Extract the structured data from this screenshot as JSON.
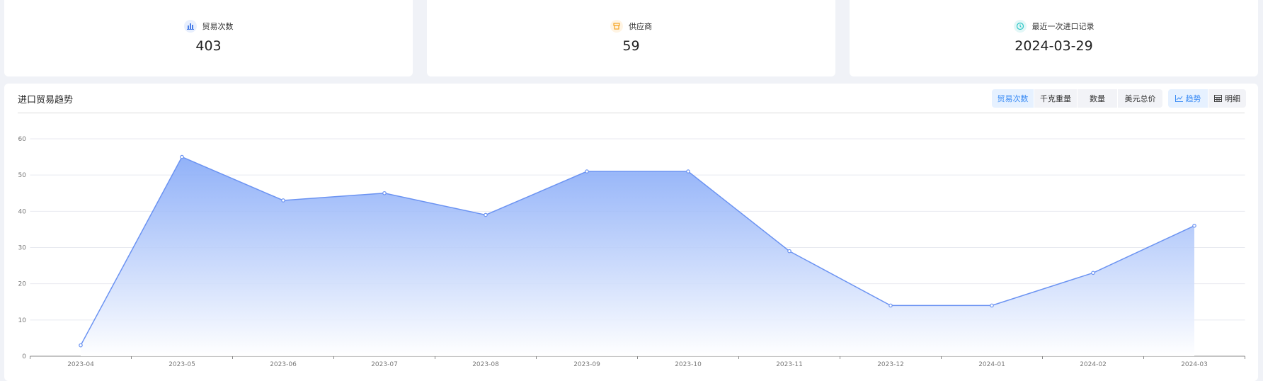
{
  "stats": [
    {
      "label": "贸易次数",
      "value": "403",
      "icon": "bar-chart-icon",
      "color": "#4a7ee8",
      "bg": "#e8effd"
    },
    {
      "label": "供应商",
      "value": "59",
      "icon": "store-icon",
      "color": "#f5a524",
      "bg": "#fff4e3"
    },
    {
      "label": "最近一次进口记录",
      "value": "2024-03-29",
      "icon": "clock-icon",
      "color": "#2cc6c6",
      "bg": "#e3f7f7"
    }
  ],
  "panel": {
    "title": "进口贸易趋势",
    "metric_tabs": [
      "贸易次数",
      "千克重量",
      "数量",
      "美元总价"
    ],
    "active_metric": "贸易次数",
    "view_tabs": [
      {
        "label": "趋势",
        "icon": "line-chart-icon"
      },
      {
        "label": "明细",
        "icon": "table-icon"
      }
    ],
    "active_view": "趋势"
  },
  "chart_data": {
    "type": "area",
    "categories": [
      "2023-04",
      "2023-05",
      "2023-06",
      "2023-07",
      "2023-08",
      "2023-09",
      "2023-10",
      "2023-11",
      "2023-12",
      "2024-01",
      "2024-02",
      "2024-03"
    ],
    "values": [
      3,
      55,
      43,
      45,
      39,
      51,
      51,
      29,
      14,
      14,
      23,
      36
    ],
    "ylim": [
      0,
      60
    ],
    "yticks": [
      0,
      10,
      20,
      30,
      40,
      50,
      60
    ],
    "grid": true,
    "line_color": "#6b93f2",
    "fill_color": "#7ea4f7"
  }
}
